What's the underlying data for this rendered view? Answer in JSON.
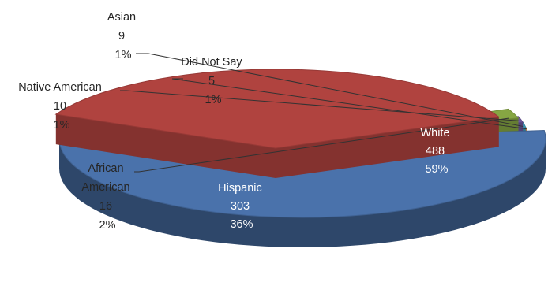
{
  "chart_data": {
    "type": "pie",
    "style": "3d-exploded",
    "slices": [
      {
        "name": "White",
        "value": 488,
        "percent": "59%",
        "color": "#4a72ab"
      },
      {
        "name": "Hispanic",
        "value": 303,
        "percent": "36%",
        "color": "#b0433f"
      },
      {
        "name": "African American",
        "value": 16,
        "percent": "2%",
        "color": "#86a643"
      },
      {
        "name": "Native American",
        "value": 10,
        "percent": "1%",
        "color": "#6f58a0"
      },
      {
        "name": "Asian",
        "value": 9,
        "percent": "1%",
        "color": "#3c9cba"
      },
      {
        "name": "Did Not Say",
        "value": 5,
        "percent": "1%",
        "color": "#e08a3c"
      }
    ],
    "title": "",
    "legend": "none"
  }
}
